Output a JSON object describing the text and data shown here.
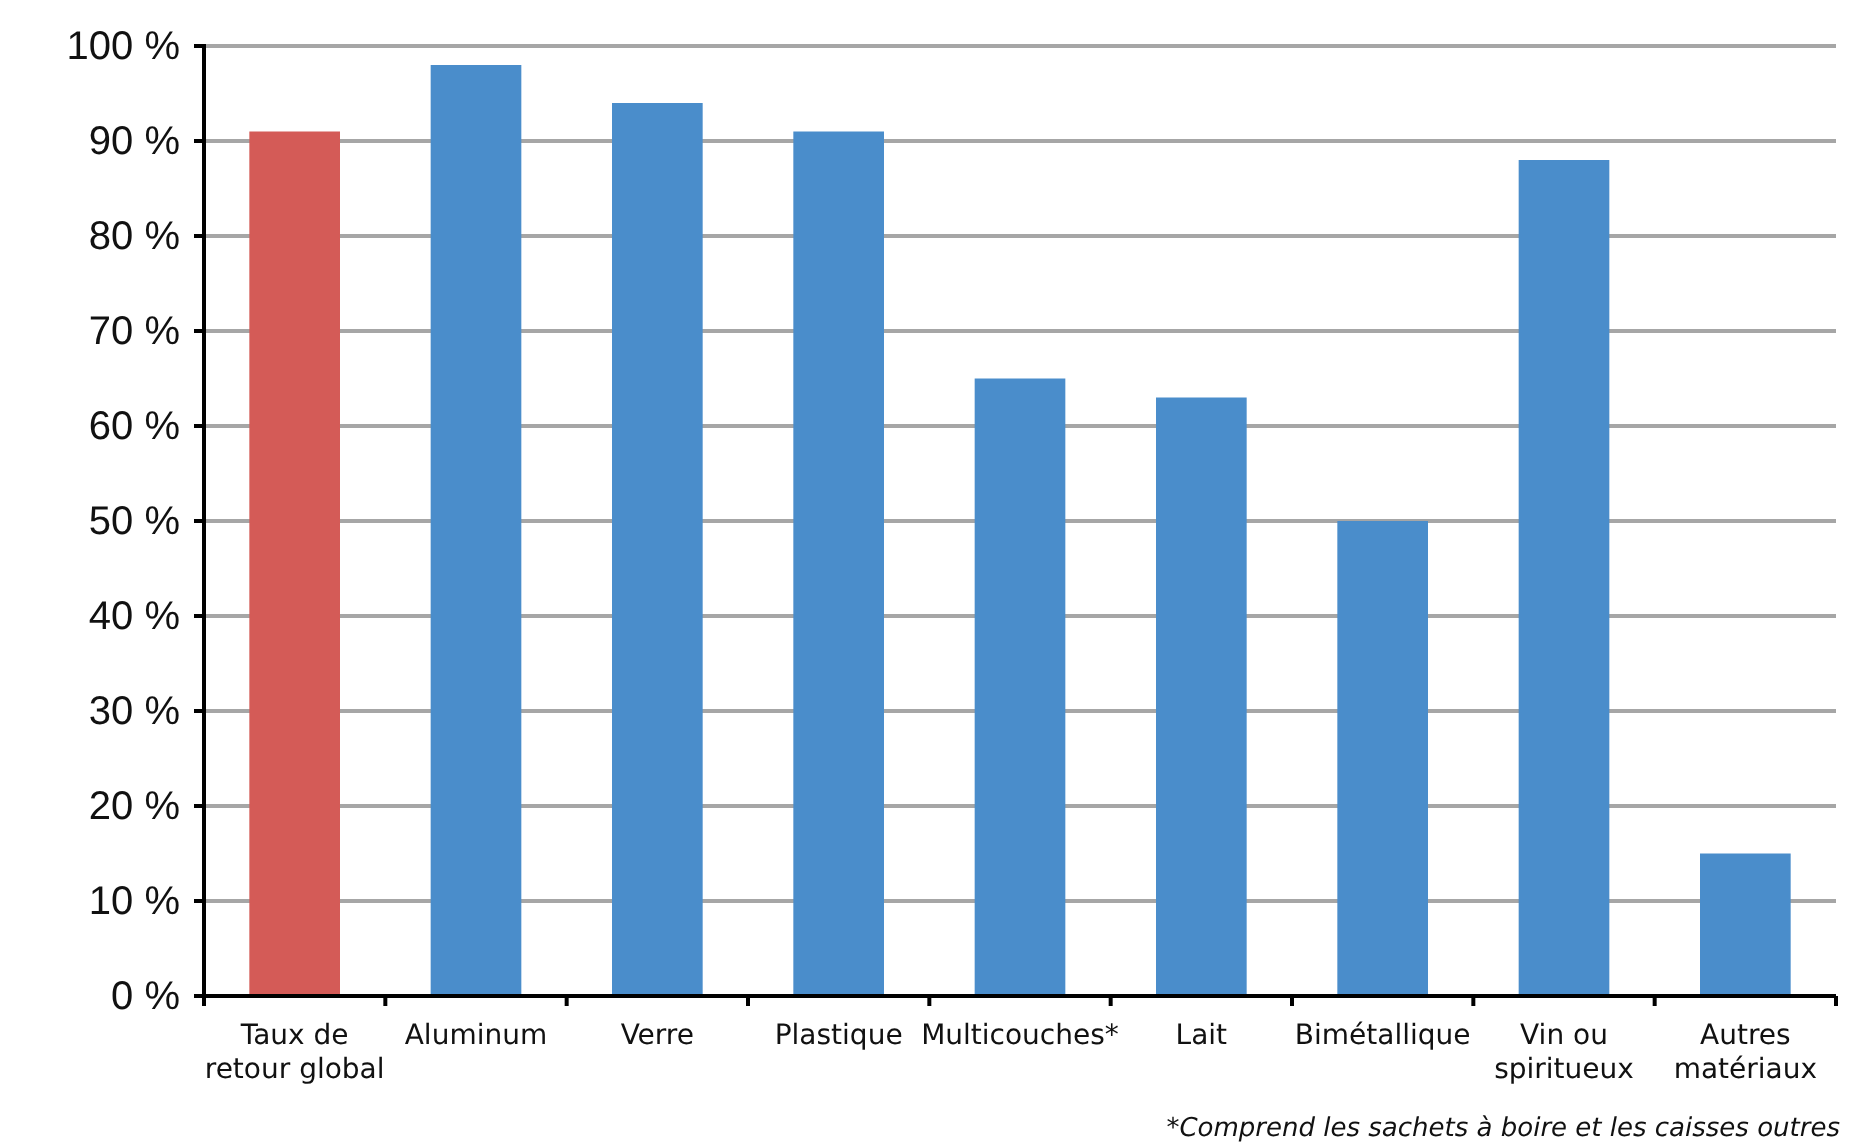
{
  "chart_data": {
    "type": "bar",
    "categories": [
      "Taux de retour global",
      "Aluminum",
      "Verre",
      "Plastique",
      "Multicouches*",
      "Lait",
      "Bimétallique",
      "Vin ou spiritueux",
      "Autres matériaux"
    ],
    "values": [
      91,
      98,
      94,
      91,
      65,
      63,
      50,
      88,
      15
    ],
    "colors": [
      "#d45b57",
      "#4a8dcb",
      "#4a8dcb",
      "#4a8dcb",
      "#4a8dcb",
      "#4a8dcb",
      "#4a8dcb",
      "#4a8dcb",
      "#4a8dcb"
    ],
    "ylim": [
      0,
      100
    ],
    "yticks": [
      {
        "value": 0,
        "label": "0 %"
      },
      {
        "value": 10,
        "label": "10 %"
      },
      {
        "value": 20,
        "label": "20 %"
      },
      {
        "value": 30,
        "label": "30 %"
      },
      {
        "value": 40,
        "label": "40 %"
      },
      {
        "value": 50,
        "label": "50 %"
      },
      {
        "value": 60,
        "label": "60 %"
      },
      {
        "value": 70,
        "label": "70 %"
      },
      {
        "value": 80,
        "label": "80 %"
      },
      {
        "value": 90,
        "label": "90 %"
      },
      {
        "value": 100,
        "label": "100 %"
      }
    ],
    "grid": "y",
    "annotations": [
      "*Comprend les sachets à boire et les caisses outres"
    ]
  }
}
